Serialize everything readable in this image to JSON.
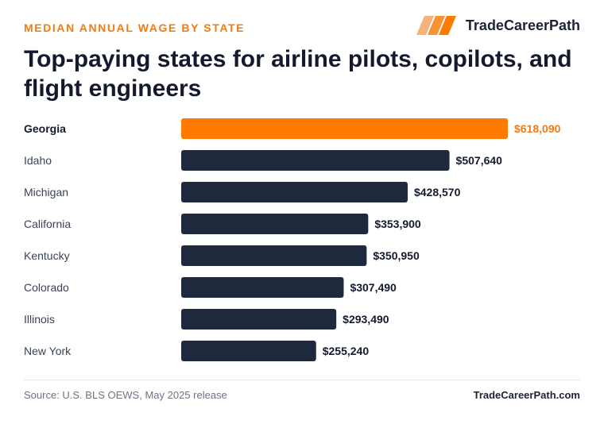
{
  "header": {
    "eyebrow": "MEDIAN ANNUAL WAGE BY STATE",
    "brand_name": "TradeCareerPath",
    "brand_logo_icon": "stripes-logo-icon",
    "title": "Top-paying states for airline pilots, copilots, and flight engineers"
  },
  "chart_data": {
    "type": "bar",
    "orientation": "horizontal",
    "categories": [
      "Georgia",
      "Idaho",
      "Michigan",
      "California",
      "Kentucky",
      "Colorado",
      "Illinois",
      "New York"
    ],
    "values": [
      618090,
      507640,
      428570,
      353900,
      350950,
      307490,
      293490,
      255240
    ],
    "value_labels": [
      "$618,090",
      "$507,640",
      "$428,570",
      "$353,900",
      "$350,950",
      "$307,490",
      "$293,490",
      "$255,240"
    ],
    "highlight_index": 0,
    "xlim": [
      0,
      618090
    ],
    "grid": false,
    "legend": "none",
    "colors": {
      "highlight": "#ff7a00",
      "bar": "#1e293d",
      "highlight_label": "#f07c12",
      "label": "#141a2e"
    }
  },
  "footer": {
    "source": "Source: U.S. BLS OEWS, May 2025 release",
    "site": "TradeCareerPath.com"
  }
}
